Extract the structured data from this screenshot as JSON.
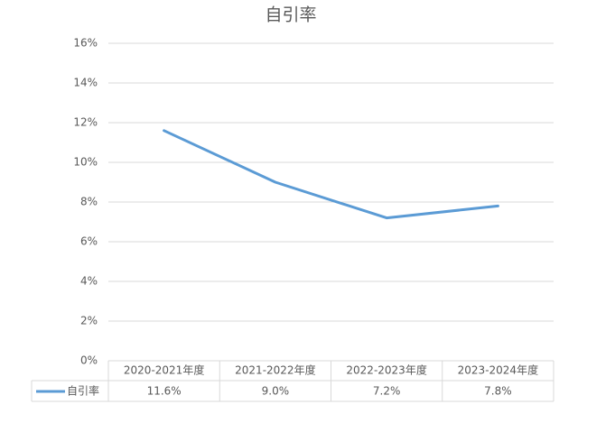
{
  "chart_data": {
    "type": "line",
    "title": "自引率",
    "categories": [
      "2020-2021年度",
      "2021-2022年度",
      "2022-2023年度",
      "2023-2024年度"
    ],
    "series": [
      {
        "name": "自引率",
        "color": "#5b9bd5",
        "values": [
          11.6,
          9.0,
          7.2,
          7.8
        ],
        "value_labels": [
          "11.6%",
          "9.0%",
          "7.2%",
          "7.8%"
        ]
      }
    ],
    "ylim": [
      0,
      16
    ],
    "yticks": [
      {
        "value": 0,
        "label": "0%"
      },
      {
        "value": 2,
        "label": "2%"
      },
      {
        "value": 4,
        "label": "4%"
      },
      {
        "value": 6,
        "label": "6%"
      },
      {
        "value": 8,
        "label": "8%"
      },
      {
        "value": 10,
        "label": "10%"
      },
      {
        "value": 12,
        "label": "12%"
      },
      {
        "value": 14,
        "label": "14%"
      },
      {
        "value": 16,
        "label": "16%"
      }
    ],
    "grid": true
  }
}
